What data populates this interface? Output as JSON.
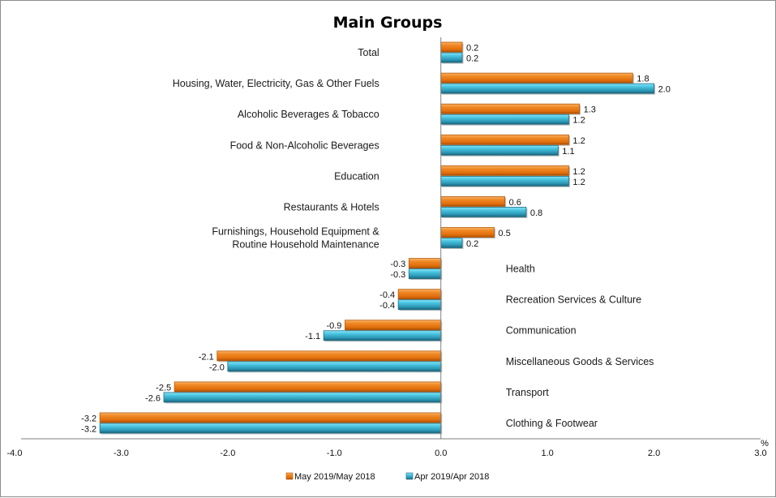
{
  "chart_data": {
    "type": "bar",
    "orientation": "horizontal",
    "title": "Main Groups",
    "xlabel": "%",
    "ylabel": "",
    "xlim": [
      -4.0,
      3.0
    ],
    "xticks": [
      "-4.0",
      "-3.0",
      "-2.0",
      "-1.0",
      "0.0",
      "1.0",
      "2.0",
      "3.0"
    ],
    "grid": false,
    "legend_position": "bottom",
    "categories": [
      "Total",
      "Housing, Water, Electricity, Gas & Other Fuels",
      "Alcoholic Beverages  & Tobacco",
      "Food & Non-Alcoholic Beverages",
      "Education",
      "Restaurants & Hotels",
      "Furnishings, Household Equipment & Routine Household Maintenance",
      "Health",
      "Recreation Services & Culture",
      "Communication",
      "Miscellaneous Goods & Services",
      "Transport",
      "Clothing & Footwear"
    ],
    "category_lines": [
      [
        "Total"
      ],
      [
        "Housing, Water, Electricity, Gas & Other Fuels"
      ],
      [
        "Alcoholic Beverages  & Tobacco"
      ],
      [
        "Food & Non-Alcoholic Beverages"
      ],
      [
        "Education"
      ],
      [
        "Restaurants & Hotels"
      ],
      [
        "Furnishings, Household Equipment &",
        "Routine Household Maintenance"
      ],
      [
        "Health"
      ],
      [
        "Recreation Services & Culture"
      ],
      [
        "Communication"
      ],
      [
        "Miscellaneous Goods & Services"
      ],
      [
        "Transport"
      ],
      [
        "Clothing & Footwear"
      ]
    ],
    "series": [
      {
        "name": "May 2019/May 2018",
        "color": "#E8740F",
        "values": [
          0.2,
          1.8,
          1.3,
          1.2,
          1.2,
          0.6,
          0.5,
          -0.3,
          -0.4,
          -0.9,
          -2.1,
          -2.5,
          -3.2
        ]
      },
      {
        "name": "Apr 2019/Apr 2018",
        "color": "#2E9CBC",
        "values": [
          0.2,
          2.0,
          1.2,
          1.1,
          1.2,
          0.8,
          0.2,
          -0.3,
          -0.4,
          -1.1,
          -2.0,
          -2.6,
          -3.2
        ]
      }
    ]
  }
}
